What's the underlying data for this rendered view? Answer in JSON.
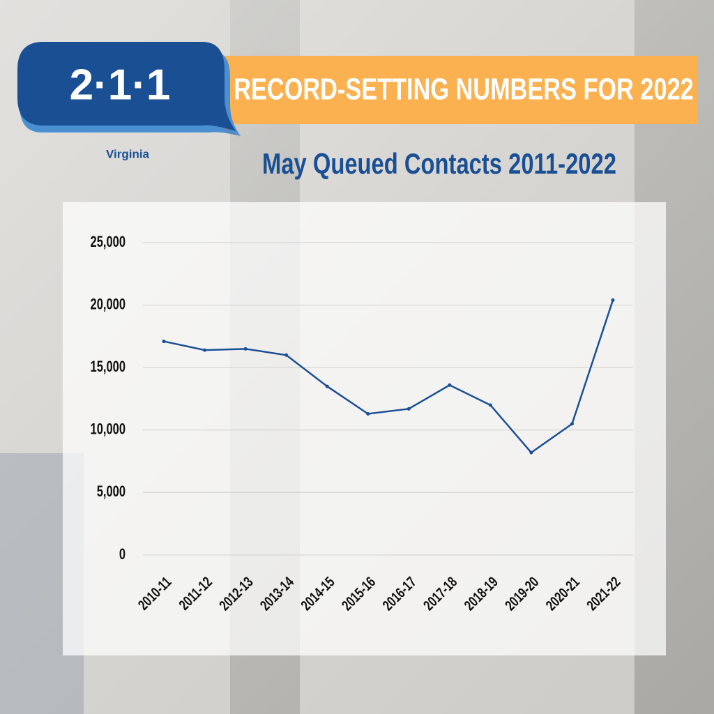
{
  "header": {
    "logo": "2·1·1",
    "region": "Virginia",
    "banner": "RECORD-SETTING NUMBERS FOR 2022"
  },
  "chart_data": {
    "type": "line",
    "title": "May Queued Contacts 2011-2022",
    "categories": [
      "2010-11",
      "2011-12",
      "2012-13",
      "2013-14",
      "2014-15",
      "2015-16",
      "2016-17",
      "2017-18",
      "2018-19",
      "2019-20",
      "2020-21",
      "2021-22"
    ],
    "series": [
      {
        "name": "May Queued Contacts",
        "color": "#1a4f94",
        "values": [
          17100,
          16400,
          16500,
          16000,
          13500,
          11300,
          11700,
          13600,
          12000,
          8200,
          10500,
          20400
        ]
      }
    ],
    "ylim": [
      0,
      25000
    ],
    "yticks": [
      0,
      {
        "value": 5000,
        "label": "5,000"
      },
      {
        "value": 10000,
        "label": "10,000"
      },
      {
        "value": 15000,
        "label": "15,000"
      },
      {
        "value": 20000,
        "label": "20,000"
      },
      {
        "value": 25000,
        "label": "25,000"
      }
    ],
    "grid": true
  }
}
